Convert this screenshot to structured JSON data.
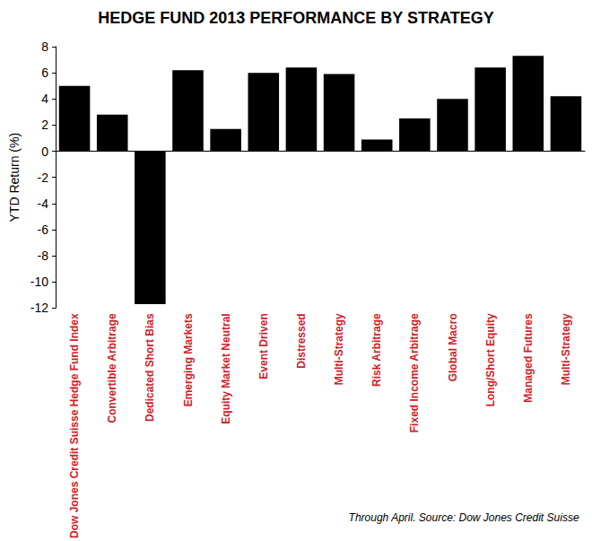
{
  "chart_data": {
    "type": "bar",
    "title": "HEDGE FUND 2013 PERFORMANCE BY STRATEGY",
    "y_label": "YTD Return (%)",
    "annotation": "Through April. Source: Dow Jones Credit Suisse",
    "categories": [
      "Dow Jones Credit Suisse Hedge Fund Index",
      "Convertible Arbitrage",
      "Dedicated Short Bias",
      "Emerging Markets",
      "Equity Market Neutral",
      "Event Driven",
      "Distressed",
      "Multi-Strategy",
      "Risk Arbitrage",
      "Fixed Income Arbitrage",
      "Global Macro",
      "Long/Short Equity",
      "Managed Futures",
      "Multi-Strategy"
    ],
    "values": [
      5.0,
      2.8,
      -11.7,
      6.2,
      1.7,
      6.0,
      6.4,
      5.9,
      0.9,
      2.5,
      4.0,
      6.4,
      7.3,
      4.2
    ],
    "color": "#000000",
    "ylim": [
      -12,
      8
    ],
    "yticks": [
      -12,
      -10,
      -8,
      -6,
      -4,
      -2,
      0,
      2,
      4,
      6,
      8
    ],
    "grid": false
  }
}
